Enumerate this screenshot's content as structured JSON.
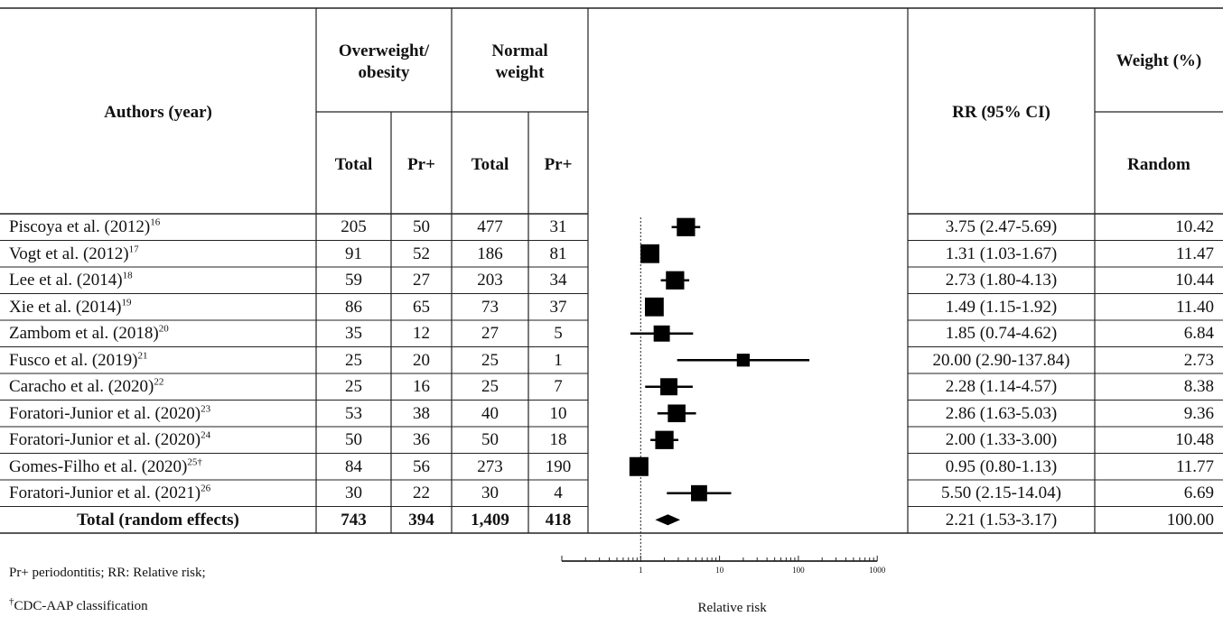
{
  "headers": {
    "authors": "Authors (year)",
    "group_ow": "Overweight/ obesity",
    "group_nw": "Normal weight",
    "total": "Total",
    "prplus": "Pr+",
    "rr": "RR (95% CI)",
    "weight": "Weight (%)",
    "random": "Random"
  },
  "rows": [
    {
      "author": "Piscoya et al. (2012)",
      "ref": "16",
      "ow_total": "205",
      "ow_pr": "50",
      "nw_total": "477",
      "nw_pr": "31",
      "rr_text": "3.75 (2.47-5.69)",
      "weight": "10.42"
    },
    {
      "author": "Vogt et al. (2012)",
      "ref": "17",
      "ow_total": "91",
      "ow_pr": "52",
      "nw_total": "186",
      "nw_pr": "81",
      "rr_text": "1.31 (1.03-1.67)",
      "weight": "11.47"
    },
    {
      "author": "Lee et al. (2014)",
      "ref": "18",
      "ow_total": "59",
      "ow_pr": "27",
      "nw_total": "203",
      "nw_pr": "34",
      "rr_text": "2.73 (1.80-4.13)",
      "weight": "10.44"
    },
    {
      "author": "Xie et al. (2014)",
      "ref": "19",
      "ow_total": "86",
      "ow_pr": "65",
      "nw_total": "73",
      "nw_pr": "37",
      "rr_text": "1.49 (1.15-1.92)",
      "weight": "11.40"
    },
    {
      "author": "Zambom et al. (2018)",
      "ref": "20",
      "ow_total": "35",
      "ow_pr": "12",
      "nw_total": "27",
      "nw_pr": "5",
      "rr_text": "1.85 (0.74-4.62)",
      "weight": "6.84"
    },
    {
      "author": "Fusco et al. (2019)",
      "ref": "21",
      "ow_total": "25",
      "ow_pr": "20",
      "nw_total": "25",
      "nw_pr": "1",
      "rr_text": "20.00 (2.90-137.84)",
      "weight": "2.73"
    },
    {
      "author": "Caracho et al. (2020)",
      "ref": "22",
      "ow_total": "25",
      "ow_pr": "16",
      "nw_total": "25",
      "nw_pr": "7",
      "rr_text": "2.28 (1.14-4.57)",
      "weight": "8.38"
    },
    {
      "author": "Foratori-Junior et al. (2020)",
      "ref": "23",
      "ow_total": "53",
      "ow_pr": "38",
      "nw_total": "40",
      "nw_pr": "10",
      "rr_text": "2.86 (1.63-5.03)",
      "weight": "9.36"
    },
    {
      "author": "Foratori-Junior et al. (2020)",
      "ref": "24",
      "ow_total": "50",
      "ow_pr": "36",
      "nw_total": "50",
      "nw_pr": "18",
      "rr_text": "2.00 (1.33-3.00)",
      "weight": "10.48"
    },
    {
      "author": "Gomes-Filho et al. (2020)",
      "ref": "25†",
      "ow_total": "84",
      "ow_pr": "56",
      "nw_total": "273",
      "nw_pr": "190",
      "rr_text": "0.95 (0.80-1.13)",
      "weight": "11.77"
    },
    {
      "author": "Foratori-Junior et al. (2021)",
      "ref": "26",
      "ow_total": "30",
      "ow_pr": "22",
      "nw_total": "30",
      "nw_pr": "4",
      "rr_text": "5.50 (2.15-14.04)",
      "weight": "6.69"
    }
  ],
  "total_row": {
    "author": "Total (random effects)",
    "ow_total": "743",
    "ow_pr": "394",
    "nw_total": "1,409",
    "nw_pr": "418",
    "rr_text": "2.21 (1.53-3.17)",
    "weight": "100.00"
  },
  "footnotes": {
    "abbrev": "Pr+ periodontitis; RR: Relative risk;",
    "dagger_mark": "†",
    "dagger_text": "CDC-AAP classification"
  },
  "chart_data": {
    "type": "forest",
    "xlabel": "Relative risk",
    "xscale": "log",
    "xlim": [
      0.1,
      1000
    ],
    "xticks": [
      1,
      10,
      100,
      1000
    ],
    "xtick_labels": [
      "1",
      "10",
      "100",
      "1000"
    ],
    "reference_line": 1,
    "studies": [
      {
        "rr": 3.75,
        "lo": 2.47,
        "hi": 5.69,
        "weight": 10.42
      },
      {
        "rr": 1.31,
        "lo": 1.03,
        "hi": 1.67,
        "weight": 11.47
      },
      {
        "rr": 2.73,
        "lo": 1.8,
        "hi": 4.13,
        "weight": 10.44
      },
      {
        "rr": 1.49,
        "lo": 1.15,
        "hi": 1.92,
        "weight": 11.4
      },
      {
        "rr": 1.85,
        "lo": 0.74,
        "hi": 4.62,
        "weight": 6.84
      },
      {
        "rr": 20.0,
        "lo": 2.9,
        "hi": 137.84,
        "weight": 2.73
      },
      {
        "rr": 2.28,
        "lo": 1.14,
        "hi": 4.57,
        "weight": 8.38
      },
      {
        "rr": 2.86,
        "lo": 1.63,
        "hi": 5.03,
        "weight": 9.36
      },
      {
        "rr": 2.0,
        "lo": 1.33,
        "hi": 3.0,
        "weight": 10.48
      },
      {
        "rr": 0.95,
        "lo": 0.8,
        "hi": 1.13,
        "weight": 11.77
      },
      {
        "rr": 5.5,
        "lo": 2.15,
        "hi": 14.04,
        "weight": 6.69
      }
    ],
    "pooled": {
      "rr": 2.21,
      "lo": 1.53,
      "hi": 3.17
    }
  }
}
